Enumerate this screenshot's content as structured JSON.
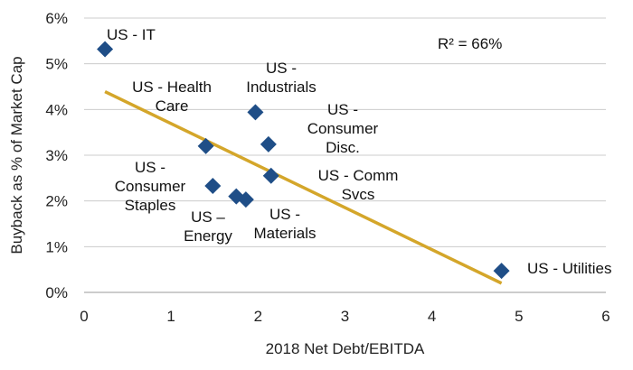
{
  "chart_data": {
    "type": "scatter",
    "xlabel": "2018 Net Debt/EBITDA",
    "ylabel": "Buyback as % of Market Cap",
    "xlim": [
      0,
      6
    ],
    "ylim": [
      0,
      6
    ],
    "x_ticks": [
      "0",
      "1",
      "2",
      "3",
      "4",
      "5",
      "6"
    ],
    "y_ticks": [
      "0%",
      "1%",
      "2%",
      "3%",
      "4%",
      "5%",
      "6%"
    ],
    "grid": "horizontal",
    "annotation": "R² = 66%",
    "colors": {
      "marker": "#1f4e87",
      "trendline": "#d4a62a",
      "grid": "#cccccc"
    },
    "points": [
      {
        "label": [
          "US - IT"
        ],
        "x": 0.24,
        "y": 5.32
      },
      {
        "label": [
          "US - Health",
          "Care"
        ],
        "x": 1.4,
        "y": 3.2
      },
      {
        "label": [
          "US -",
          "Industrials"
        ],
        "x": 1.97,
        "y": 3.94
      },
      {
        "label": [
          "US -",
          "Consumer",
          "Disc."
        ],
        "x": 2.12,
        "y": 3.24
      },
      {
        "label": [
          "US - Comm",
          "Svcs"
        ],
        "x": 2.15,
        "y": 2.55
      },
      {
        "label": [
          "US -",
          "Consumer",
          "Staples"
        ],
        "x": 1.48,
        "y": 2.33
      },
      {
        "label": [
          "US –",
          "Energy"
        ],
        "x": 1.75,
        "y": 2.1
      },
      {
        "label": [
          "US -",
          "Materials"
        ],
        "x": 1.86,
        "y": 2.03
      },
      {
        "label": [
          "US - Utilities"
        ],
        "x": 4.8,
        "y": 0.47
      }
    ],
    "trendline": {
      "x": [
        0.24,
        4.8
      ],
      "y": [
        4.39,
        0.2
      ]
    }
  }
}
